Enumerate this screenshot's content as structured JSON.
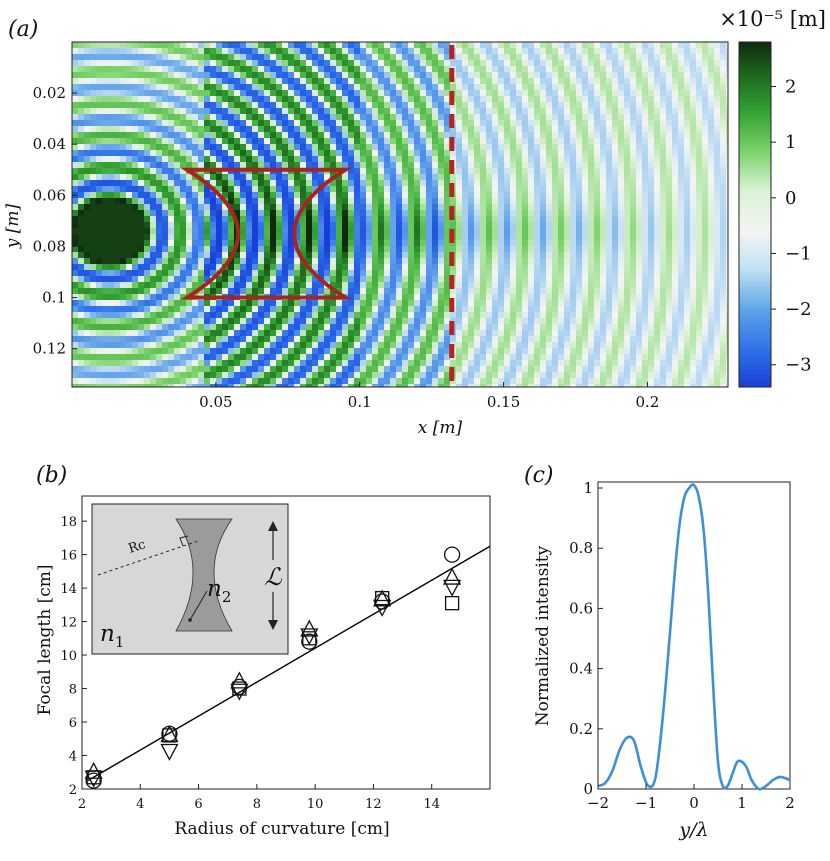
{
  "panels": {
    "a_label": "(a)",
    "b_label": "(b)",
    "c_label": "(c)"
  },
  "chart_data": [
    {
      "id": "a",
      "type": "heatmap",
      "title": "",
      "xlabel": "x [m]",
      "ylabel": "y [m]",
      "xlim": [
        0,
        0.228
      ],
      "ylim": [
        0,
        0.135
      ],
      "y_inverted": true,
      "x_ticks": [
        0.05,
        0.1,
        0.15,
        0.2
      ],
      "x_tick_labels": [
        "0.05",
        "0.1",
        "0.15",
        "0.2"
      ],
      "y_ticks": [
        0.02,
        0.04,
        0.06,
        0.08,
        0.1,
        0.12
      ],
      "y_tick_labels": [
        "0.02",
        "0.04",
        "0.06",
        "0.08",
        "0.1",
        "0.12"
      ],
      "colorbar": {
        "label": "×10⁻⁵ [m]",
        "range": [
          -3.4,
          2.8
        ],
        "ticks": [
          2,
          1,
          0,
          -1,
          -2,
          -3
        ],
        "tick_labels": [
          "2",
          "1",
          "0",
          "−1",
          "−2",
          "−3"
        ],
        "colormap": "blue-white-green",
        "low_color": "#1a3fd6",
        "mid_color": "#f4f4f4",
        "high_color": "#0f2a0f"
      },
      "source_center": [
        0.013,
        0.074
      ],
      "wavelength_m": 0.0125,
      "lens": {
        "x_left": 0.04,
        "x_right": 0.095,
        "y_top": 0.05,
        "y_bottom": 0.1,
        "color": "#a8241e"
      },
      "dashed_line_x": 0.132,
      "dashed_line_color": "#b3241e"
    },
    {
      "id": "b",
      "type": "scatter",
      "xlabel": "Radius of curvature [cm]",
      "ylabel": "Focal length [cm]",
      "xlim": [
        2,
        16
      ],
      "ylim": [
        2,
        19.5
      ],
      "x_ticks": [
        2,
        4,
        6,
        8,
        10,
        12,
        14
      ],
      "x_tick_labels": [
        "2",
        "4",
        "6",
        "8",
        "10",
        "12",
        "14"
      ],
      "y_ticks": [
        2,
        4,
        6,
        8,
        10,
        12,
        14,
        16,
        18
      ],
      "y_tick_labels": [
        "2",
        "4",
        "6",
        "8",
        "10",
        "12",
        "14",
        "16",
        "18"
      ],
      "fit_line": {
        "x": [
          2.2,
          16
        ],
        "y": [
          2.5,
          16.5
        ]
      },
      "series": [
        {
          "name": "circle",
          "marker": "circle",
          "x": [
            2.4,
            5.0,
            7.4,
            9.8,
            12.3,
            14.7
          ],
          "y": [
            2.5,
            5.3,
            8.1,
            10.8,
            13.2,
            16.0
          ]
        },
        {
          "name": "triangle-up",
          "marker": "triangle-up",
          "x": [
            2.4,
            5.0,
            7.4,
            9.8,
            12.3,
            14.7
          ],
          "y": [
            3.0,
            5.2,
            8.4,
            11.5,
            13.3,
            14.6
          ]
        },
        {
          "name": "triangle-down",
          "marker": "triangle-down",
          "x": [
            2.4,
            5.0,
            7.4,
            9.8,
            12.3,
            14.7
          ],
          "y": [
            2.7,
            4.3,
            7.9,
            11.2,
            12.9,
            14.1
          ]
        },
        {
          "name": "square",
          "marker": "square",
          "x": [
            2.4,
            5.0,
            7.4,
            9.8,
            12.3,
            14.7
          ],
          "y": [
            2.7,
            5.2,
            8.0,
            11.0,
            13.4,
            13.1
          ]
        }
      ],
      "inset": {
        "rc_label": "Rc",
        "n1_label": "n",
        "n1_sub": "1",
        "n2_label": "n",
        "n2_sub": "2",
        "length_label": "ℒ"
      }
    },
    {
      "id": "c",
      "type": "line",
      "xlabel": "y/λ",
      "ylabel": "Normalized intensity",
      "xlim": [
        -2,
        2
      ],
      "ylim": [
        0,
        1.02
      ],
      "x_ticks": [
        -2,
        -1,
        0,
        1,
        2
      ],
      "x_tick_labels": [
        "−2",
        "−1",
        "0",
        "1",
        "2"
      ],
      "y_ticks": [
        0,
        0.2,
        0.4,
        0.6,
        0.8,
        1
      ],
      "y_tick_labels": [
        "0",
        "0.2",
        "0.4",
        "0.6",
        "0.8",
        "1"
      ],
      "color": "#3d8fd8",
      "x": [
        -2.0,
        -1.85,
        -1.7,
        -1.55,
        -1.4,
        -1.25,
        -1.1,
        -0.95,
        -0.8,
        -0.65,
        -0.5,
        -0.4,
        -0.3,
        -0.2,
        -0.1,
        0.0,
        0.1,
        0.2,
        0.3,
        0.4,
        0.5,
        0.6,
        0.7,
        0.8,
        0.9,
        1.0,
        1.1,
        1.2,
        1.35,
        1.5,
        1.65,
        1.8,
        2.0
      ],
      "y": [
        0.01,
        0.02,
        0.06,
        0.13,
        0.17,
        0.16,
        0.07,
        0.01,
        0.04,
        0.24,
        0.52,
        0.72,
        0.88,
        0.97,
        1.0,
        1.01,
        0.97,
        0.86,
        0.64,
        0.34,
        0.09,
        0.01,
        0.01,
        0.05,
        0.09,
        0.09,
        0.07,
        0.03,
        0.0,
        0.01,
        0.03,
        0.04,
        0.03
      ]
    }
  ]
}
